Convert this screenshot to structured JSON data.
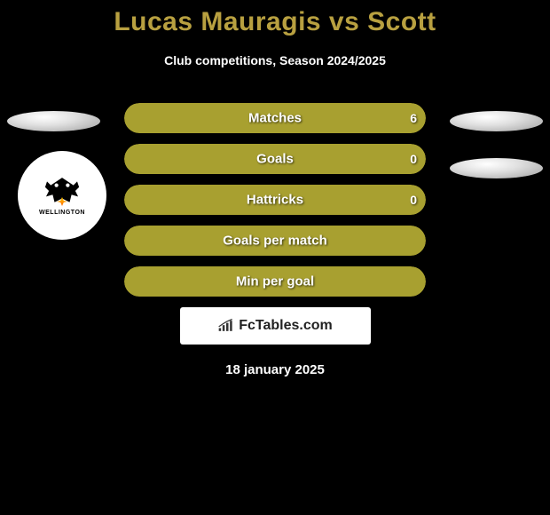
{
  "title": "Lucas Mauragis vs Scott",
  "subtitle": "Club competitions, Season 2024/2025",
  "colors": {
    "background": "#000000",
    "title": "#b8a040",
    "bar": "#a8a030",
    "text": "#ffffff"
  },
  "club": {
    "name": "WELLINGTON"
  },
  "stats": [
    {
      "label": "Matches",
      "left_value": "",
      "right_value": "6",
      "bar_type": "split",
      "left_width_pct": 50,
      "right_width_pct": 50
    },
    {
      "label": "Goals",
      "left_value": "",
      "right_value": "0",
      "bar_type": "split",
      "left_width_pct": 50,
      "right_width_pct": 50
    },
    {
      "label": "Hattricks",
      "left_value": "",
      "right_value": "0",
      "bar_type": "split",
      "left_width_pct": 50,
      "right_width_pct": 50
    },
    {
      "label": "Goals per match",
      "left_value": "",
      "right_value": "",
      "bar_type": "full",
      "left_width_pct": 100,
      "right_width_pct": 0
    },
    {
      "label": "Min per goal",
      "left_value": "",
      "right_value": "",
      "bar_type": "full",
      "left_width_pct": 100,
      "right_width_pct": 0
    }
  ],
  "logo": {
    "text": "FcTables.com"
  },
  "date": "18 january 2025"
}
